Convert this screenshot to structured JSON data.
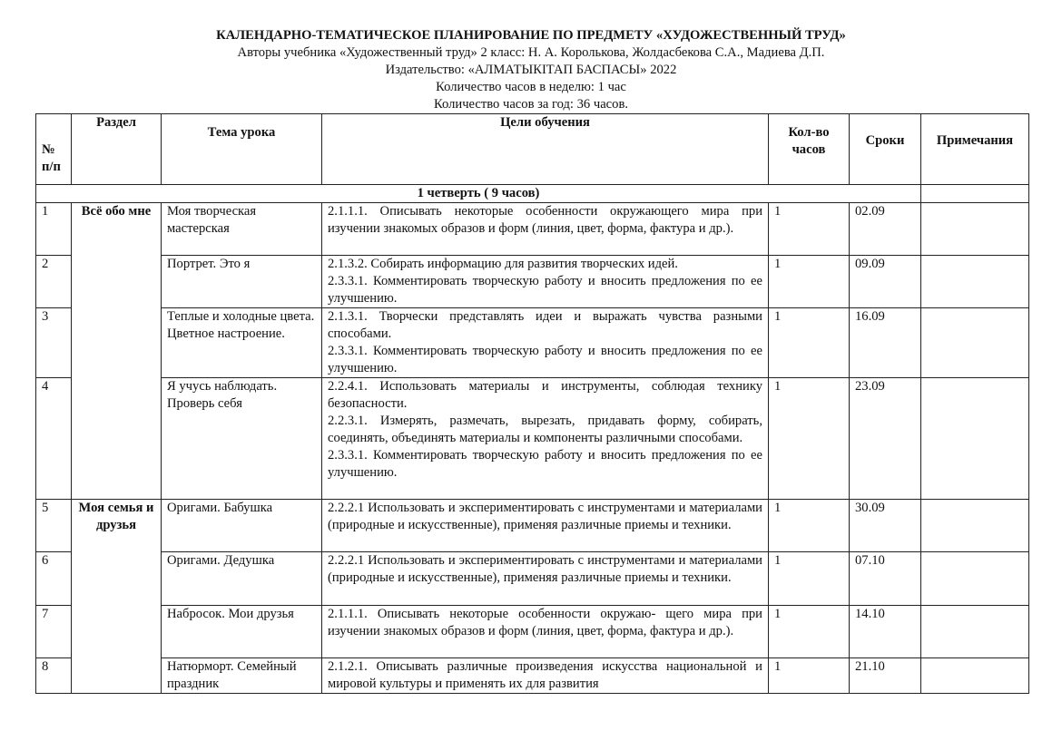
{
  "header": {
    "title": "КАЛЕНДАРНО-ТЕМАТИЧЕСКОЕ ПЛАНИРОВАНИЕ ПО ПРЕДМЕТУ «ХУДОЖЕСТВЕННЫЙ ТРУД»",
    "authors": "Авторы учебника «Художественный труд» 2 класс: Н. А. Королькова, Жолдасбекова С.А., Мадиева Д.П.",
    "publisher": "Издательство: «АЛМАТЫКІТАП БАСПАСЫ» 2022",
    "hours_week": "Количество часов в неделю: 1 час",
    "hours_year": "Количество часов за год: 36 часов."
  },
  "table": {
    "columns": [
      "№ п/п",
      "Раздел",
      "Тема урока",
      "Цели обучения",
      "Кол-во часов",
      "Сроки",
      "Примечания"
    ],
    "quarter": "1 четверть ( 9 часов)",
    "sections": [
      {
        "name": "Всё обо мне",
        "rows": 4
      },
      {
        "name": "Моя семья и друзья",
        "rows": 4
      }
    ],
    "rows": [
      {
        "num": "1",
        "topic": "Моя творческая мастерская",
        "objectives": [
          "2.1.1.1. Описывать некоторые особенности окружающего мира при изучении знакомых образов и форм (линия, цвет, форма, фактура и др.)."
        ],
        "hours": "1",
        "date": "02.09",
        "note": ""
      },
      {
        "num": "2",
        "topic": "Портрет. Это я",
        "objectives": [
          "2.1.3.2. Собирать информацию для развития творческих идей.",
          "2.3.3.1. Комментировать творческую работу и вносить предложения по ее улучшению."
        ],
        "hours": "1",
        "date": "09.09",
        "note": ""
      },
      {
        "num": "3",
        "topic": "Теплые и холодные цвета. Цветное настроение.",
        "objectives": [
          "2.1.3.1. Творчески представлять идеи и выражать чувства разными способами.",
          "2.3.3.1. Комментировать творческую работу и вносить предложения по ее улучшению."
        ],
        "hours": "1",
        "date": "16.09",
        "note": ""
      },
      {
        "num": "4",
        "topic": "Я учусь наблюдать. Проверь себя",
        "objectives": [
          "2.2.4.1. Использовать материалы и инструменты, соблюдая технику безопасности.",
          "2.2.3.1. Измерять, размечать, вырезать, придавать форму, собирать, соединять, объединять материалы и компоненты различными способами.",
          "2.3.3.1. Комментировать творческую работу и вносить предложения по ее улучшению."
        ],
        "hours": "1",
        "date": "23.09",
        "note": ""
      },
      {
        "num": "5",
        "topic": "Оригами. Бабушка",
        "objectives": [
          "2.2.2.1 Использовать и экспериментировать с инструментами и материалами (природные и искусственные), применяя различные приемы и техники."
        ],
        "hours": "1",
        "date": "30.09",
        "note": ""
      },
      {
        "num": "6",
        "topic": "Оригами. Дедушка",
        "objectives": [
          "2.2.2.1 Использовать и экспериментировать с инструментами и материалами (природные и искусственные), применяя различные приемы и техники."
        ],
        "hours": "1",
        "date": "07.10",
        "note": ""
      },
      {
        "num": "7",
        "topic": "Набросок. Мои друзья",
        "objectives": [
          "2.1.1.1. Описывать некоторые особенности окружаю- щего мира при изучении знакомых образов и форм (линия, цвет, форма, фактура и др.)."
        ],
        "hours": "1",
        "date": "14.10",
        "note": ""
      },
      {
        "num": "8",
        "topic": "Натюрморт. Семейный праздник",
        "objectives": [
          "2.1.2.1. Описывать различные произведения искусства национальной и мировой культуры и применять их для развития"
        ],
        "hours": "1",
        "date": "21.10",
        "note": ""
      }
    ]
  }
}
